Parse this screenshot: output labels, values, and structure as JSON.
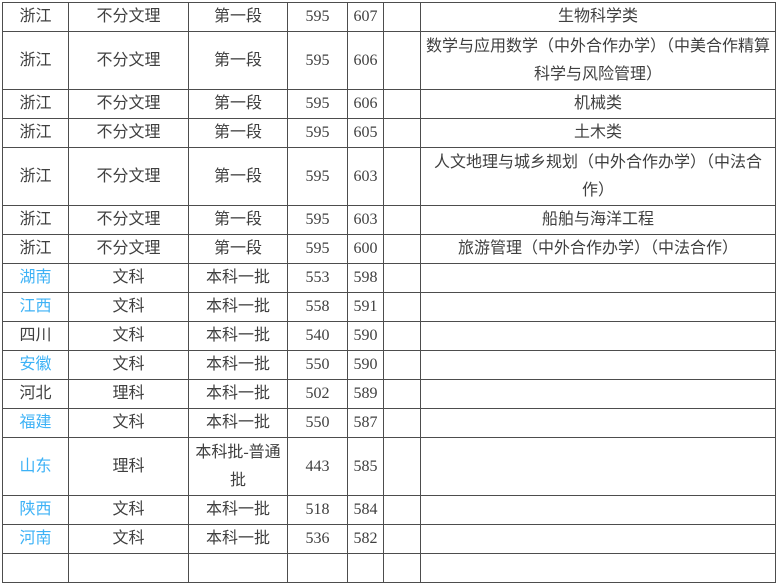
{
  "colors": {
    "link_blue": "#3db2f6",
    "text": "#3f3f3f",
    "border": "#4d4d4d",
    "background": "#ffffff"
  },
  "table": {
    "description": "university-admission-scores-by-province",
    "columns": [
      "province",
      "category",
      "batch",
      "score1",
      "score2",
      "spacer",
      "major"
    ],
    "rows": [
      {
        "province": "浙江",
        "link": false,
        "category": "不分文理",
        "batch": "第一段",
        "score1": "595",
        "score2": "607",
        "major": "生物科学类",
        "tall": false
      },
      {
        "province": "浙江",
        "link": false,
        "category": "不分文理",
        "batch": "第一段",
        "score1": "595",
        "score2": "606",
        "major": "数学与应用数学（中外合作办学）（中美合作精算科学与风险管理）",
        "tall": true
      },
      {
        "province": "浙江",
        "link": false,
        "category": "不分文理",
        "batch": "第一段",
        "score1": "595",
        "score2": "606",
        "major": "机械类",
        "tall": false
      },
      {
        "province": "浙江",
        "link": false,
        "category": "不分文理",
        "batch": "第一段",
        "score1": "595",
        "score2": "605",
        "major": "土木类",
        "tall": false
      },
      {
        "province": "浙江",
        "link": false,
        "category": "不分文理",
        "batch": "第一段",
        "score1": "595",
        "score2": "603",
        "major": "人文地理与城乡规划（中外合作办学）（中法合作）",
        "tall": true
      },
      {
        "province": "浙江",
        "link": false,
        "category": "不分文理",
        "batch": "第一段",
        "score1": "595",
        "score2": "603",
        "major": "船舶与海洋工程",
        "tall": false
      },
      {
        "province": "浙江",
        "link": false,
        "category": "不分文理",
        "batch": "第一段",
        "score1": "595",
        "score2": "600",
        "major": "旅游管理（中外合作办学）（中法合作）",
        "tall": false
      },
      {
        "province": "湖南",
        "link": true,
        "category": "文科",
        "batch": "本科一批",
        "score1": "553",
        "score2": "598",
        "major": "",
        "tall": false
      },
      {
        "province": "江西",
        "link": true,
        "category": "文科",
        "batch": "本科一批",
        "score1": "558",
        "score2": "591",
        "major": "",
        "tall": false
      },
      {
        "province": "四川",
        "link": false,
        "category": "文科",
        "batch": "本科一批",
        "score1": "540",
        "score2": "590",
        "major": "",
        "tall": false
      },
      {
        "province": "安徽",
        "link": true,
        "category": "文科",
        "batch": "本科一批",
        "score1": "550",
        "score2": "590",
        "major": "",
        "tall": false
      },
      {
        "province": "河北",
        "link": false,
        "category": "理科",
        "batch": "本科一批",
        "score1": "502",
        "score2": "589",
        "major": "",
        "tall": false
      },
      {
        "province": "福建",
        "link": true,
        "category": "文科",
        "batch": "本科一批",
        "score1": "550",
        "score2": "587",
        "major": "",
        "tall": false
      },
      {
        "province": "山东",
        "link": true,
        "category": "理科",
        "batch": "本科批-普通批",
        "score1": "443",
        "score2": "585",
        "major": "",
        "tall": true
      },
      {
        "province": "陕西",
        "link": true,
        "category": "文科",
        "batch": "本科一批",
        "score1": "518",
        "score2": "584",
        "major": "",
        "tall": false
      },
      {
        "province": "河南",
        "link": true,
        "category": "文科",
        "batch": "本科一批",
        "score1": "536",
        "score2": "582",
        "major": "",
        "tall": false
      },
      {
        "province": "",
        "link": false,
        "category": "",
        "batch": "",
        "score1": "",
        "score2": "",
        "major": "",
        "tall": false
      }
    ]
  }
}
